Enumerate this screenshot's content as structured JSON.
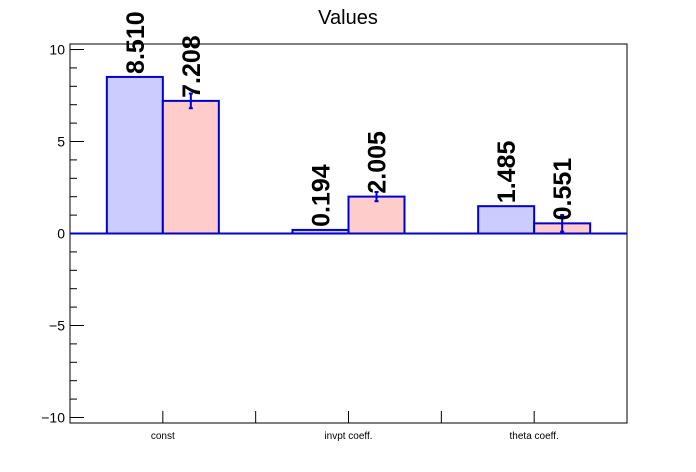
{
  "chart_data": {
    "type": "bar",
    "title": "Values",
    "categories": [
      "const",
      "invpt coeff.",
      "theta coeff."
    ],
    "ylim": [
      -10.3,
      10.3
    ],
    "yticks": [
      -10,
      -5,
      0,
      5,
      10
    ],
    "ytick_labels": [
      "−10",
      "−5",
      "0",
      "5",
      "10"
    ],
    "series": [
      {
        "values": [
          8.51,
          0.194,
          1.485
        ],
        "labels": [
          "8.510",
          "0.194",
          "1.485"
        ],
        "errors": [
          0,
          0,
          0
        ],
        "fill": "#ccccff",
        "stroke": "#0000cc"
      },
      {
        "values": [
          7.208,
          2.005,
          0.551
        ],
        "labels": [
          "7.208",
          "2.005",
          "0.551"
        ],
        "errors": [
          0.4,
          0.25,
          0.45
        ],
        "fill": "#ffcccc",
        "stroke": "#0000cc"
      }
    ],
    "grid": false,
    "xlabel": "",
    "ylabel": ""
  }
}
